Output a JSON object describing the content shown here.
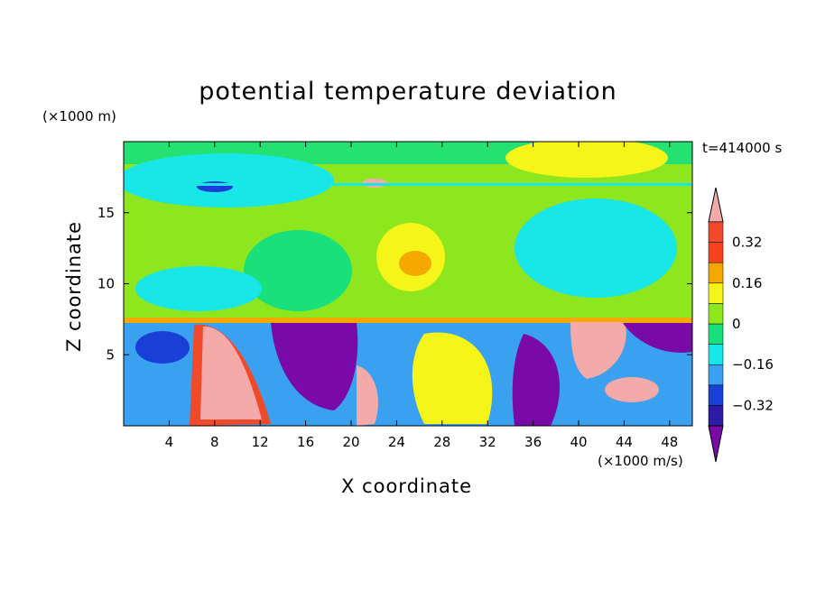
{
  "chart_data": {
    "type": "heatmap",
    "title": "potential temperature deviation",
    "time_label": "t=414000 s",
    "xlabel": "X coordinate",
    "ylabel": "Z coordinate",
    "x_unit": "(×1000 m/s)",
    "y_unit": "(×1000 m)",
    "xlim": [
      0,
      50
    ],
    "ylim": [
      0,
      20
    ],
    "xticks": [
      "4",
      "8",
      "12",
      "16",
      "20",
      "24",
      "28",
      "32",
      "36",
      "40",
      "44",
      "48"
    ],
    "yticks": [
      "5",
      "10",
      "15"
    ],
    "colorbar": {
      "levels": [
        "-0.4",
        "-0.32",
        "-0.24",
        "-0.16",
        "-0.08",
        "0",
        "0.08",
        "0.16",
        "0.24",
        "0.32",
        "0.4"
      ],
      "tick_labels": [
        "−0.32",
        "−0.16",
        "0",
        "0.16",
        "0.32"
      ],
      "colors": [
        "#7a0aa8",
        "#2e1aa6",
        "#1a3fd6",
        "#3aa0f0",
        "#19e6e6",
        "#19e07a",
        "#8ee61e",
        "#f5f51a",
        "#f5a800",
        "#f5421a",
        "#f04a2a",
        "#f5aaaa"
      ],
      "extend": "both"
    }
  }
}
